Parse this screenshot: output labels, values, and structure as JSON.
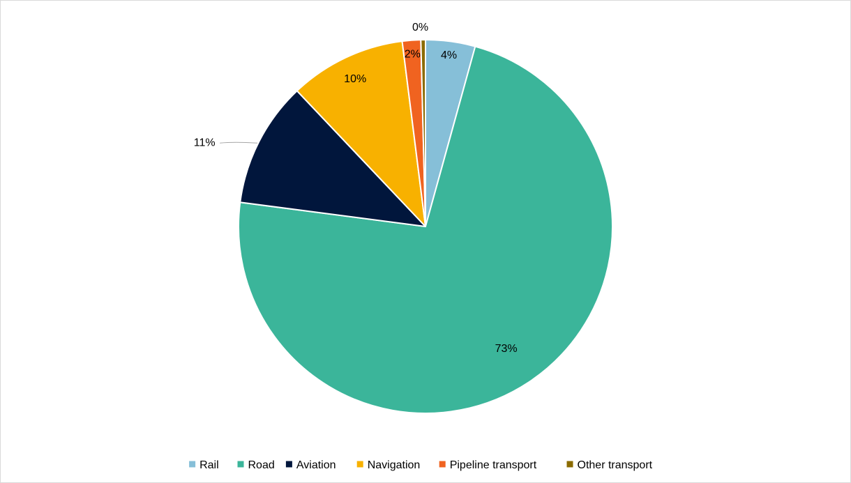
{
  "chart_data": {
    "type": "pie",
    "categories": [
      "Rail",
      "Road",
      "Aviation",
      "Navigation",
      "Pipeline transport",
      "Other transport"
    ],
    "values": [
      4.3,
      73,
      10.9,
      10.1,
      1.6,
      0.4
    ],
    "data_labels": [
      "4%",
      "73%",
      "11%",
      "10%",
      "2%",
      "0%"
    ],
    "colors": [
      "#86bfd8",
      "#3bb59a",
      "#01163c",
      "#f8b100",
      "#f06320",
      "#8b6b00"
    ],
    "title": "",
    "start_angle_deg": 0,
    "direction": "clockwise",
    "legend_position": "bottom"
  }
}
